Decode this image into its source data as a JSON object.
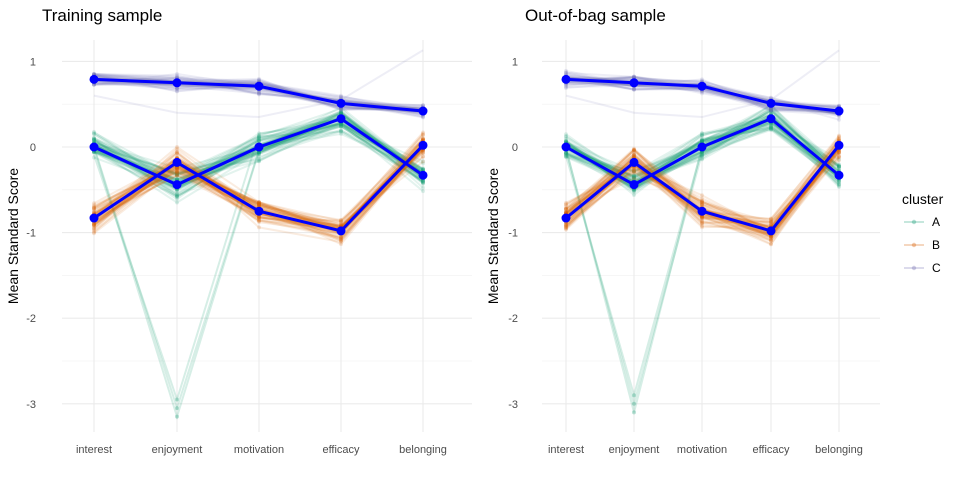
{
  "chart_data": [
    {
      "type": "line",
      "title": "Training sample",
      "xlabel": "",
      "ylabel": "Mean Standard Score",
      "categories": [
        "interest",
        "enjoyment",
        "motivation",
        "efficacy",
        "belonging"
      ],
      "yticks": [
        1,
        0,
        -1,
        -2,
        -3
      ],
      "ytick_labels": [
        "1",
        "0",
        "-1",
        "-2",
        "-3"
      ],
      "ylim": [
        -3.35,
        1.3
      ],
      "grid": true,
      "cluster_means": [
        {
          "name": "A",
          "values": [
            0.0,
            -0.44,
            0.0,
            0.33,
            -0.33
          ]
        },
        {
          "name": "B",
          "values": [
            -0.83,
            -0.18,
            -0.75,
            -0.98,
            0.02
          ]
        },
        {
          "name": "C",
          "values": [
            0.79,
            0.75,
            0.71,
            0.51,
            0.42
          ]
        }
      ],
      "individual_spread": {
        "A": {
          "center": [
            0.0,
            -0.44,
            0.0,
            0.33,
            -0.33
          ],
          "outlier_min_enjoyment": -3.15
        },
        "B": {
          "center": [
            -0.83,
            -0.18,
            -0.75,
            -0.98,
            0.02
          ]
        },
        "C": {
          "center": [
            0.79,
            0.75,
            0.71,
            0.51,
            0.42
          ],
          "outlier_max_belonging": 1.13
        }
      }
    },
    {
      "type": "line",
      "title": "Out-of-bag sample",
      "xlabel": "",
      "ylabel": "Mean Standard Score",
      "categories": [
        "interest",
        "enjoyment",
        "motivation",
        "efficacy",
        "belonging"
      ],
      "yticks": [
        1,
        0,
        -1,
        -2,
        -3
      ],
      "ytick_labels": [
        "1",
        "0",
        "-1",
        "-2",
        "-3"
      ],
      "ylim": [
        -3.35,
        1.3
      ],
      "grid": true,
      "cluster_means": [
        {
          "name": "A",
          "values": [
            0.0,
            -0.44,
            0.0,
            0.33,
            -0.33
          ]
        },
        {
          "name": "B",
          "values": [
            -0.83,
            -0.18,
            -0.75,
            -0.98,
            0.02
          ]
        },
        {
          "name": "C",
          "values": [
            0.79,
            0.75,
            0.71,
            0.51,
            0.42
          ]
        }
      ],
      "individual_spread": {
        "A": {
          "center": [
            0.0,
            -0.44,
            0.0,
            0.33,
            -0.33
          ],
          "outlier_min_enjoyment": -3.1
        },
        "B": {
          "center": [
            -0.83,
            -0.18,
            -0.75,
            -0.98,
            0.02
          ]
        },
        "C": {
          "center": [
            0.79,
            0.75,
            0.71,
            0.51,
            0.42
          ],
          "outlier_max_belonging": 1.13
        }
      }
    }
  ],
  "legend": {
    "title": "cluster",
    "placement": "right",
    "items": [
      {
        "label": "A",
        "color": "#1b9e77"
      },
      {
        "label": "B",
        "color": "#d95f02"
      },
      {
        "label": "C",
        "color": "#7570b3"
      }
    ]
  },
  "mean_line_color": "#0000ff"
}
